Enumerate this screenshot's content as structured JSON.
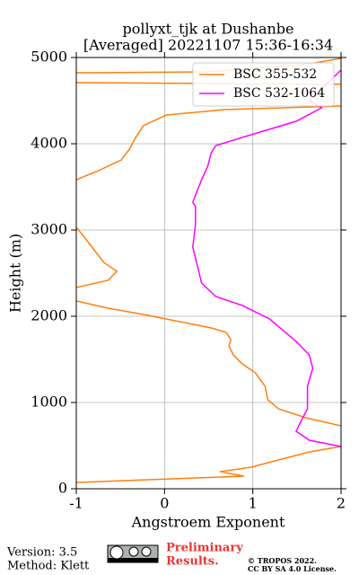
{
  "chart_data": {
    "type": "line",
    "title": "pollyxt_tjk at Dushanbe",
    "subtitle": "[Averaged] 20221107 15:36-16:34",
    "xlabel": "Angstroem Exponent",
    "ylabel": "Height (m)",
    "xlim": [
      -1,
      2
    ],
    "xticks": [
      -1,
      0,
      1,
      2
    ],
    "ylim": [
      0,
      5000
    ],
    "yticks": [
      0,
      1000,
      2000,
      3000,
      4000,
      5000
    ],
    "grid": true,
    "legend": "upper right",
    "series": [
      {
        "name": "BSC 355-532",
        "color": "#ff7f0e",
        "heights": [
          73,
          146,
          198,
          250,
          333,
          427,
          490,
          null,
          729,
          823,
          927,
          1031,
          1188,
          1344,
          1448,
          1552,
          1656,
          1729,
          1813,
          1865,
          1938,
          2021,
          2094,
          2177,
          null,
          2333,
          2417,
          2521,
          2625,
          2771,
          2906,
          3031,
          null,
          3583,
          3688,
          3813,
          3948,
          4052,
          4208,
          4333,
          4396,
          4438,
          null,
          4708,
          4690,
          null,
          4823,
          4833,
          4920,
          4990
        ],
        "values": [
          -1,
          0.9,
          0.63,
          0.98,
          1.29,
          1.64,
          2.0,
          null,
          2.0,
          1.6,
          1.29,
          1.17,
          1.14,
          1.03,
          0.88,
          0.78,
          0.73,
          0.75,
          0.7,
          0.53,
          0.17,
          -0.24,
          -0.64,
          -1,
          null,
          -1,
          -0.64,
          -0.54,
          -0.69,
          -0.8,
          -0.9,
          -1,
          null,
          -1,
          -0.75,
          -0.49,
          -0.39,
          -0.34,
          -0.24,
          0.02,
          0.68,
          2.0,
          null,
          -1,
          2.0,
          null,
          -1,
          0.5,
          1.6,
          2.0
        ]
      },
      {
        "name": "BSC 532-1064",
        "color": "#ff00ff",
        "heights": [
          490,
          562,
          667,
          771,
          927,
          1188,
          1396,
          1552,
          1708,
          1969,
          2125,
          2229,
          2385,
          2594,
          2802,
          3063,
          3271,
          3323,
          3583,
          3740,
          3896,
          3979,
          4104,
          4260,
          4417,
          4500,
          4854
        ],
        "values": [
          2.0,
          1.64,
          1.49,
          1.54,
          1.62,
          1.62,
          1.68,
          1.64,
          1.49,
          1.19,
          0.88,
          0.58,
          0.42,
          0.37,
          0.32,
          0.35,
          0.35,
          0.32,
          0.42,
          0.49,
          0.53,
          0.58,
          0.98,
          1.49,
          1.78,
          1.64,
          2.0
        ]
      }
    ]
  },
  "footer": {
    "version": "Version: 3.5",
    "method": "Method: Klett",
    "preliminary": [
      "Preliminary",
      "Results."
    ],
    "copyright": [
      "© TROPOS 2022.",
      "CC BY SA 4.0 License."
    ]
  }
}
